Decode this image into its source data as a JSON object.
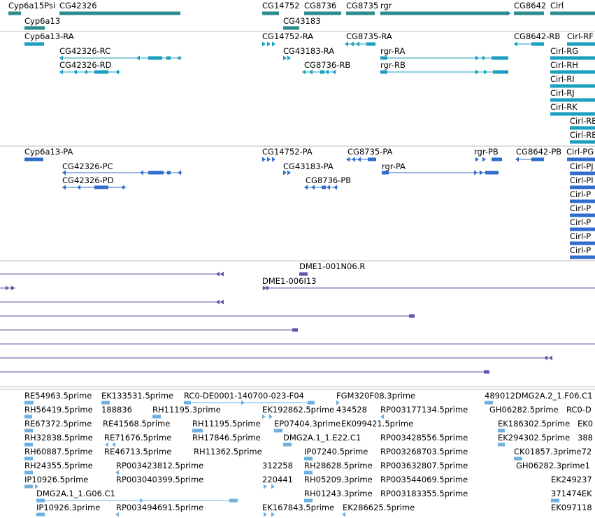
{
  "colors": {
    "gene": "#2a8c8c",
    "rna": "#1a9fc0",
    "protein": "#2f6ccc",
    "clone": "#6a4fa8",
    "est": "#6fb0e0",
    "divider": "#bbbbbb"
  },
  "tracks": {
    "genes": {
      "label_rows": [
        [
          "Cyp6a15Psi",
          "CG42326",
          "CG14752",
          "CG8736",
          "CG8735",
          "rgr",
          "CG8642",
          "Cirl"
        ],
        [
          "Cyp6a13",
          "CG43183"
        ]
      ]
    },
    "transcripts": [
      "Cyp6a13-RA",
      "CG42326-RC",
      "CG42326-RD",
      "CG14752-RA",
      "CG43183-RA",
      "CG8736-RB",
      "CG8735-RA",
      "rgr-RA",
      "rgr-RB",
      "CG8642-RB",
      "Cirl-RF",
      "Cirl-RG",
      "Cirl-RH",
      "Cirl-RI",
      "Cirl-RJ",
      "Cirl-RK",
      "Cirl-RE",
      "Cirl-RE"
    ],
    "proteins": [
      "Cyp6a13-PA",
      "CG42326-PC",
      "CG42326-PD",
      "CG14752-PA",
      "CG43183-PA",
      "CG8736-PB",
      "CG8735-PA",
      "rgr-PA",
      "rgr-PB",
      "CG8642-PB",
      "Cirl-PG",
      "Cirl-PJ",
      "Cirl-PI",
      "Cirl-P",
      "Cirl-P",
      "Cirl-P",
      "Cirl-P",
      "Cirl-P"
    ],
    "clones": [
      "DME1-001N06.R",
      "DME1-006I13"
    ],
    "ests": [
      "RE54963.5prime",
      "EK133531.5prime",
      "RC0-DE0001-140700-023-F04",
      "FGM320F08.3prime",
      "489012DMG2A.2_1.F06.C1",
      "RH56419.5prime",
      "188836",
      "RH11195.3prime",
      "EK192862.5prime",
      "434528",
      "RP003177134.5prime",
      "GH06282.5prime",
      "RC0-D",
      "RE67372.5prime",
      "RE41568.5prime",
      "RH11195.5prime",
      "EP07404.3prime",
      "EK099421.5prime",
      "EK186302.5prime",
      "EK0",
      "RH32838.5prime",
      "RE71676.5prime",
      "RH17846.5prime",
      "DMG2A.1_1.E22.C1",
      "RP003428556.5prime",
      "EK294302.5prime",
      "388",
      "RH60887.5prime",
      "RE46713.5prime",
      "RH11362.5prime",
      "IP07240.5prime",
      "RP003268703.5prime",
      "CK01857.3prime72",
      "RH24355.5prime",
      "RP003423812.5prime",
      "312258",
      "RH28628.5prime",
      "RP003632807.5prime",
      "GH06282.3prime1",
      "IP10926.5prime",
      "RP003040399.5prime",
      "220441",
      "RH05209.3prime",
      "RP003544069.5prime",
      "EK249237",
      "DMG2A.1_1.G06.C1",
      "RH01243.3prime",
      "RP003183355.5prime",
      "371474EK",
      "IP10926.3prime",
      "RP003494691.5prime",
      "EK167843.5prime",
      "EK286625.5prime",
      "EK097118"
    ]
  }
}
